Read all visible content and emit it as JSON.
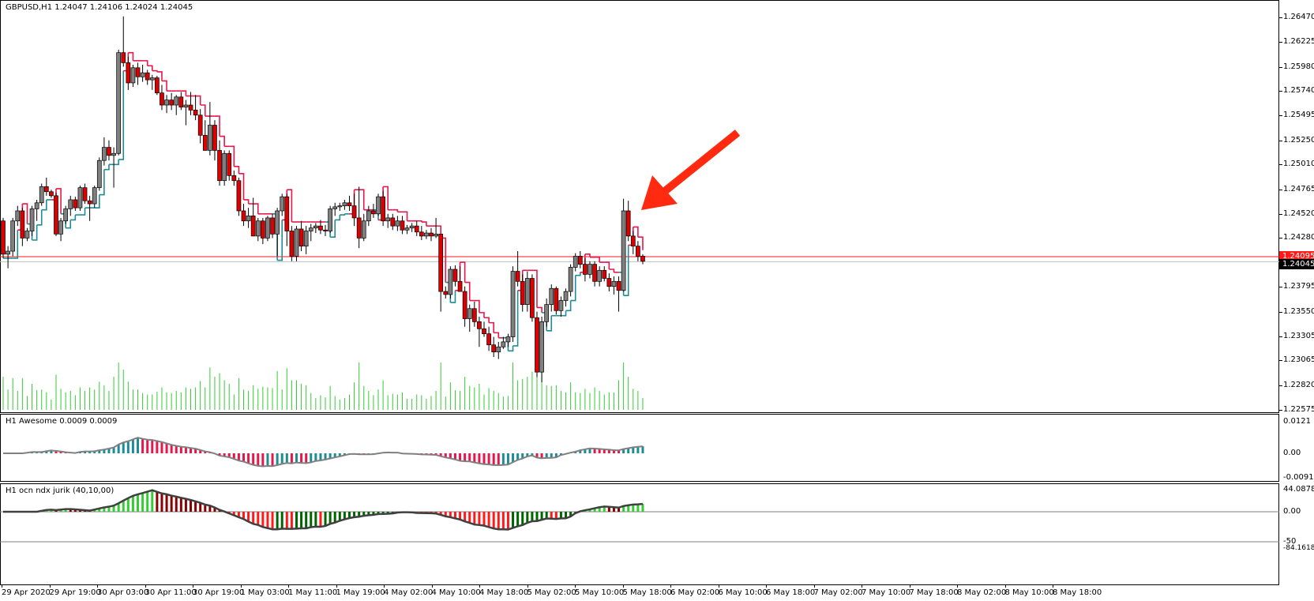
{
  "symbol_header": "GBPUSD,H1  1.24047 1.24106 1.24024 1.24045",
  "price_axis": {
    "labels": [
      "1.26470",
      "1.26225",
      "1.25980",
      "1.25740",
      "1.25495",
      "1.25250",
      "1.25010",
      "1.24765",
      "1.24520",
      "1.24280",
      "1.23795",
      "1.23550",
      "1.23305",
      "1.23065",
      "1.22820",
      "1.22575"
    ],
    "current_price": "1.24045",
    "red_line_price": "1.24095",
    "range": [
      1.22575,
      1.2647
    ]
  },
  "awesome_panel": {
    "label": "H1 Awesome 0.0009 0.0009",
    "axis_labels": [
      "0.0121",
      "0.00",
      "-0.0091"
    ]
  },
  "jurik_panel": {
    "label": "H1   ocn ndx jurik (40,10,00)",
    "axis_labels": [
      "44.0878",
      "0.00",
      "-50",
      "-84.1618"
    ]
  },
  "time_axis": [
    "29 Apr 2020",
    "29 Apr 19:00",
    "30 Apr 03:00",
    "30 Apr 11:00",
    "30 Apr 19:00",
    "1 May 03:00",
    "1 May 11:00",
    "1 May 19:00",
    "4 May 02:00",
    "4 May 10:00",
    "4 May 18:00",
    "5 May 02:00",
    "5 May 10:00",
    "5 May 18:00",
    "6 May 02:00",
    "6 May 10:00",
    "6 May 18:00",
    "7 May 02:00",
    "7 May 10:00",
    "7 May 18:00",
    "8 May 02:00",
    "8 May 10:00",
    "8 May 18:00"
  ],
  "colors": {
    "bull_candle": "#808080",
    "bear_candle": "#dd0000",
    "trail_up": "#1e8c96",
    "trail_down": "#e8174a",
    "volume": "#33cc33",
    "ao_up": "#1e8c96",
    "ao_down": "#e8174a",
    "jurik_light_green": "#33cc33",
    "jurik_dark_green": "#006400",
    "jurik_red": "#ff1a1a",
    "jurik_dark_red": "#8b0000",
    "arrow": "#ff2a10"
  },
  "chart_data": {
    "type": "candlestick",
    "symbol": "GBPUSD",
    "timeframe": "H1",
    "candles_ohlc": [
      [
        1.2445,
        1.2448,
        1.2408,
        1.2412
      ],
      [
        1.2412,
        1.242,
        1.2398,
        1.2415
      ],
      [
        1.2415,
        1.2448,
        1.241,
        1.2445
      ],
      [
        1.2445,
        1.246,
        1.244,
        1.2455
      ],
      [
        1.2455,
        1.2458,
        1.242,
        1.2428
      ],
      [
        1.2428,
        1.2438,
        1.2425,
        1.2435
      ],
      [
        1.2435,
        1.246,
        1.243,
        1.2457
      ],
      [
        1.2457,
        1.2466,
        1.2445,
        1.2463
      ],
      [
        1.2463,
        1.2482,
        1.246,
        1.2479
      ],
      [
        1.2479,
        1.2488,
        1.247,
        1.2474
      ],
      [
        1.2474,
        1.2476,
        1.2468,
        1.247
      ],
      [
        1.247,
        1.2473,
        1.243,
        1.2432
      ],
      [
        1.2432,
        1.2448,
        1.2425,
        1.2445
      ],
      [
        1.2445,
        1.246,
        1.2442,
        1.2457
      ],
      [
        1.2457,
        1.247,
        1.245,
        1.2466
      ],
      [
        1.2466,
        1.2469,
        1.2455,
        1.2458
      ],
      [
        1.2458,
        1.248,
        1.2455,
        1.2478
      ],
      [
        1.2478,
        1.2482,
        1.2462,
        1.2465
      ],
      [
        1.2465,
        1.247,
        1.2445,
        1.2462
      ],
      [
        1.2462,
        1.248,
        1.2458,
        1.2478
      ],
      [
        1.2478,
        1.2508,
        1.2475,
        1.2505
      ],
      [
        1.2505,
        1.2528,
        1.25,
        1.2518
      ],
      [
        1.2518,
        1.2525,
        1.2505,
        1.251
      ],
      [
        1.251,
        1.2518,
        1.2478,
        1.2512
      ],
      [
        1.2512,
        1.2615,
        1.251,
        1.2612
      ],
      [
        1.2612,
        1.2648,
        1.2598,
        1.2602
      ],
      [
        1.2602,
        1.2608,
        1.2575,
        1.2582
      ],
      [
        1.2582,
        1.26,
        1.2578,
        1.2597
      ],
      [
        1.2597,
        1.2602,
        1.258,
        1.2588
      ],
      [
        1.2588,
        1.26,
        1.2583,
        1.2592
      ],
      [
        1.2592,
        1.2595,
        1.258,
        1.2585
      ],
      [
        1.2585,
        1.259,
        1.2575,
        1.2587
      ],
      [
        1.2587,
        1.2589,
        1.257,
        1.2572
      ],
      [
        1.2572,
        1.258,
        1.2555,
        1.256
      ],
      [
        1.256,
        1.257,
        1.2552,
        1.2565
      ],
      [
        1.2565,
        1.2572,
        1.2555,
        1.256
      ],
      [
        1.256,
        1.257,
        1.255,
        1.2568
      ],
      [
        1.2568,
        1.2573,
        1.2555,
        1.2558
      ],
      [
        1.2558,
        1.2565,
        1.254,
        1.256
      ],
      [
        1.256,
        1.2573,
        1.255,
        1.2555
      ],
      [
        1.2555,
        1.257,
        1.2545,
        1.255
      ],
      [
        1.255,
        1.2556,
        1.2522,
        1.253
      ],
      [
        1.253,
        1.2545,
        1.252,
        1.2515
      ],
      [
        1.2515,
        1.2563,
        1.251,
        1.254
      ],
      [
        1.254,
        1.2545,
        1.2505,
        1.2515
      ],
      [
        1.2515,
        1.2525,
        1.248,
        1.2485
      ],
      [
        1.2485,
        1.2515,
        1.248,
        1.2512
      ],
      [
        1.2512,
        1.2515,
        1.2485,
        1.249
      ],
      [
        1.249,
        1.2495,
        1.248,
        1.2485
      ],
      [
        1.2485,
        1.2488,
        1.245,
        1.2455
      ],
      [
        1.2455,
        1.2462,
        1.244,
        1.2445
      ],
      [
        1.2445,
        1.2458,
        1.2438,
        1.245
      ],
      [
        1.245,
        1.2468,
        1.244,
        1.243
      ],
      [
        1.243,
        1.2448,
        1.2425,
        1.2445
      ],
      [
        1.2445,
        1.2448,
        1.2422,
        1.2428
      ],
      [
        1.2428,
        1.245,
        1.2425,
        1.2448
      ],
      [
        1.2448,
        1.2452,
        1.2428,
        1.2432
      ],
      [
        1.2432,
        1.2458,
        1.241,
        1.2455
      ],
      [
        1.2455,
        1.2472,
        1.245,
        1.2469
      ],
      [
        1.2469,
        1.2472,
        1.242,
        1.2435
      ],
      [
        1.2435,
        1.244,
        1.2405,
        1.241
      ],
      [
        1.241,
        1.244,
        1.2405,
        1.2437
      ],
      [
        1.2437,
        1.2445,
        1.2415,
        1.242
      ],
      [
        1.242,
        1.244,
        1.2412,
        1.2435
      ],
      [
        1.2435,
        1.2442,
        1.2425,
        1.2438
      ],
      [
        1.2438,
        1.2443,
        1.2433,
        1.244
      ],
      [
        1.244,
        1.2446,
        1.2432,
        1.2436
      ],
      [
        1.2436,
        1.2441,
        1.243,
        1.2435
      ],
      [
        1.2435,
        1.246,
        1.2433,
        1.2457
      ],
      [
        1.2457,
        1.2463,
        1.245,
        1.2459
      ],
      [
        1.2459,
        1.2463,
        1.2455,
        1.246
      ],
      [
        1.246,
        1.2466,
        1.2456,
        1.2463
      ],
      [
        1.2463,
        1.247,
        1.2455,
        1.246
      ],
      [
        1.246,
        1.2472,
        1.244,
        1.2448
      ],
      [
        1.2448,
        1.2479,
        1.2418,
        1.2428
      ],
      [
        1.2428,
        1.2452,
        1.2425,
        1.2445
      ],
      [
        1.2445,
        1.246,
        1.244,
        1.2455
      ],
      [
        1.2455,
        1.2462,
        1.2448,
        1.2452
      ],
      [
        1.2452,
        1.2472,
        1.245,
        1.2469
      ],
      [
        1.2469,
        1.2475,
        1.244,
        1.2445
      ],
      [
        1.2445,
        1.2452,
        1.2438,
        1.2448
      ],
      [
        1.2448,
        1.2452,
        1.2436,
        1.244
      ],
      [
        1.244,
        1.245,
        1.2435,
        1.2445
      ],
      [
        1.2445,
        1.245,
        1.2432,
        1.2436
      ],
      [
        1.2436,
        1.2441,
        1.2432,
        1.2438
      ],
      [
        1.2438,
        1.2443,
        1.2434,
        1.244
      ],
      [
        1.244,
        1.2445,
        1.243,
        1.2434
      ],
      [
        1.2434,
        1.244,
        1.2426,
        1.243
      ],
      [
        1.243,
        1.2436,
        1.2427,
        1.2433
      ],
      [
        1.2433,
        1.2438,
        1.2425,
        1.243
      ],
      [
        1.243,
        1.2448,
        1.2428,
        1.2432
      ],
      [
        1.2432,
        1.2424,
        1.2355,
        1.2375
      ],
      [
        1.2375,
        1.238,
        1.2368,
        1.2372
      ],
      [
        1.2372,
        1.24,
        1.2368,
        1.2397
      ],
      [
        1.2397,
        1.2401,
        1.238,
        1.2385
      ],
      [
        1.2385,
        1.24,
        1.238,
        1.2375
      ],
      [
        1.2375,
        1.238,
        1.234,
        1.2348
      ],
      [
        1.2348,
        1.2362,
        1.2335,
        1.2358
      ],
      [
        1.2358,
        1.2365,
        1.234,
        1.2345
      ],
      [
        1.2345,
        1.235,
        1.232,
        1.2338
      ],
      [
        1.2338,
        1.2345,
        1.233,
        1.2333
      ],
      [
        1.2333,
        1.234,
        1.2316,
        1.2322
      ],
      [
        1.2322,
        1.233,
        1.231,
        1.2315
      ],
      [
        1.2315,
        1.2325,
        1.2308,
        1.232
      ],
      [
        1.232,
        1.233,
        1.2318,
        1.2325
      ],
      [
        1.2325,
        1.2333,
        1.232,
        1.233
      ],
      [
        1.233,
        1.24,
        1.2325,
        1.2395
      ],
      [
        1.2395,
        1.2415,
        1.238,
        1.2385
      ],
      [
        1.2385,
        1.2392,
        1.2355,
        1.2362
      ],
      [
        1.2362,
        1.2395,
        1.2355,
        1.2388
      ],
      [
        1.2388,
        1.2392,
        1.2345,
        1.2349
      ],
      [
        1.2349,
        1.2355,
        1.229,
        1.2295
      ],
      [
        1.2295,
        1.235,
        1.2285,
        1.2345
      ],
      [
        1.2345,
        1.2368,
        1.234,
        1.2362
      ],
      [
        1.2362,
        1.2382,
        1.2355,
        1.2378
      ],
      [
        1.2378,
        1.238,
        1.2352,
        1.2356
      ],
      [
        1.2356,
        1.237,
        1.235,
        1.2366
      ],
      [
        1.2366,
        1.2378,
        1.236,
        1.2375
      ],
      [
        1.2375,
        1.2402,
        1.237,
        1.2399
      ],
      [
        1.2399,
        1.2413,
        1.2395,
        1.241
      ],
      [
        1.241,
        1.2415,
        1.2398,
        1.2402
      ],
      [
        1.2402,
        1.2408,
        1.2385,
        1.2392
      ],
      [
        1.2392,
        1.2405,
        1.2388,
        1.2402
      ],
      [
        1.2402,
        1.2405,
        1.238,
        1.2385
      ],
      [
        1.2385,
        1.24,
        1.238,
        1.2396
      ],
      [
        1.2396,
        1.24,
        1.2385,
        1.2388
      ],
      [
        1.2388,
        1.2393,
        1.2375,
        1.238
      ],
      [
        1.238,
        1.239,
        1.2372,
        1.2385
      ],
      [
        1.2385,
        1.239,
        1.2355,
        1.2376
      ],
      [
        1.2376,
        1.2467,
        1.2375,
        1.2455
      ],
      [
        1.2455,
        1.2465,
        1.2425,
        1.243
      ],
      [
        1.243,
        1.2435,
        1.2412,
        1.242
      ],
      [
        1.242,
        1.2425,
        1.2405,
        1.241
      ],
      [
        1.241,
        1.2412,
        1.2402,
        1.2405
      ]
    ],
    "indicators": [
      "Trailing stop line (teal = up, crimson = down)",
      "Volume histogram",
      "Awesome Oscillator",
      "ocn ndx jurik (40,10,00)"
    ]
  }
}
